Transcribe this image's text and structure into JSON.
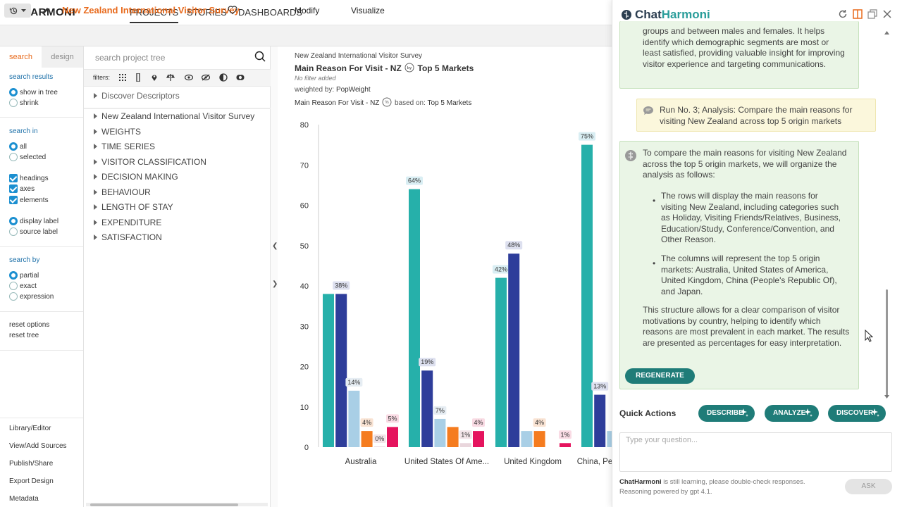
{
  "app": {
    "logo": "HARMONI"
  },
  "nav": {
    "projects": "PROJECTS",
    "stories": "STORIES",
    "dashboards": "DASHBOARDS"
  },
  "project": {
    "title": "New Zealand International Visitor Survey"
  },
  "toolbar": {
    "modify": "Modify",
    "visualize": "Visualize"
  },
  "options": {
    "tab_search": "search",
    "tab_design": "design",
    "search_results": "search results",
    "show_in_tree": "show in tree",
    "shrink": "shrink",
    "search_in": "search in",
    "all": "all",
    "selected": "selected",
    "headings": "headings",
    "axes": "axes",
    "elements": "elements",
    "display_label": "display label",
    "source_label": "source label",
    "search_by": "search by",
    "partial": "partial",
    "exact": "exact",
    "expression": "expression",
    "reset_options": "reset options",
    "reset_tree": "reset tree",
    "bottom_links": [
      "Library/Editor",
      "View/Add Sources",
      "Publish/Share",
      "Export Design",
      "Metadata"
    ]
  },
  "tree": {
    "search_placeholder": "search project tree",
    "filters_label": "filters:",
    "discover": "Discover Descriptors",
    "items": [
      "New Zealand International Visitor Survey",
      "WEIGHTS",
      "TIME SERIES",
      "VISITOR CLASSIFICATION",
      "DECISION MAKING",
      "BEHAVIOUR",
      "LENGTH OF STAY",
      "EXPENDITURE",
      "SATISFACTION"
    ]
  },
  "chart_header": {
    "survey": "New Zealand International Visitor Survey",
    "title_left": "Main Reason For Visit - NZ",
    "title_right": "Top 5 Markets",
    "no_filter": "No filter added",
    "weighted_label": "weighted by:",
    "weighted_value": "PopWeight",
    "base_left": "Main Reason For Visit - NZ",
    "base_label": "based on:",
    "base_value": "Top 5 Markets"
  },
  "colors": {
    "teal": "#26b0aa",
    "navy": "#2e3d9a",
    "lightblue": "#a9cfe6",
    "orange": "#f57c1f",
    "lightpink": "#e9d6dc",
    "magenta": "#e5145e",
    "accent": "#e86a1c",
    "button": "#1f7c78"
  },
  "chart_data": {
    "type": "bar",
    "categories": [
      "Australia",
      "United States Of Ame...",
      "United Kingdom",
      "China, Pe"
    ],
    "ylim": [
      0,
      80
    ],
    "yticks": [
      0,
      10,
      20,
      30,
      40,
      50,
      60,
      70,
      80
    ],
    "series": [
      {
        "values": [
          38,
          64,
          42,
          75
        ]
      },
      {
        "values": [
          38,
          19,
          48,
          13
        ]
      },
      {
        "values": [
          14,
          7,
          4,
          4
        ]
      },
      {
        "values": [
          4,
          5,
          4,
          null
        ]
      },
      {
        "values": [
          0,
          1,
          null,
          null
        ]
      },
      {
        "values": [
          5,
          4,
          1,
          null
        ]
      }
    ],
    "labels": [
      [
        "",
        "38%",
        "14%",
        "4%",
        "0%",
        "5%"
      ],
      [
        "64%",
        "19%",
        "7%",
        "",
        "1%",
        "4%"
      ],
      [
        "42%",
        "48%",
        "",
        "4%",
        "",
        "1%"
      ],
      [
        "75%",
        "13%",
        "",
        "",
        "",
        ""
      ]
    ]
  },
  "chat": {
    "title_a": "Chat",
    "title_b": "Harmoni",
    "msg1": "groups and between males and females. It helps identify which demographic segments are most or least satisfied, providing valuable insight for improving visitor experience and targeting communications.",
    "user_msg": "Run No. 3; Analysis: Compare the main reasons for visiting New Zealand across top 5 origin markets",
    "reply_intro": "To compare the main reasons for visiting New Zealand across the top 5 origin markets, we will organize the analysis as follows:",
    "bullet1": "The rows will display the main reasons for visiting New Zealand, including categories such as Holiday, Visiting Friends/Relatives, Business, Education/Study, Conference/Convention, and Other Reason.",
    "bullet2": "The columns will represent the top 5 origin markets: Australia, United States of America, United Kingdom, China (People's Republic Of), and Japan.",
    "reply_outro": "This structure allows for a clear comparison of visitor motivations by country, helping to identify which reasons are most prevalent in each market. The results are presented as percentages for easy interpretation.",
    "regenerate": "REGENERATE",
    "quick_actions": "Quick Actions",
    "describe": "DESCRIBE",
    "analyze": "ANALYZE",
    "discover": "DISCOVER",
    "placeholder": "Type your question...",
    "disclaimer_bold": "ChatHarmoni",
    "disclaimer_rest": " is still learning, please double-check responses.",
    "powered": "Reasoning powered by gpt 4.1.",
    "ask": "ASK"
  }
}
